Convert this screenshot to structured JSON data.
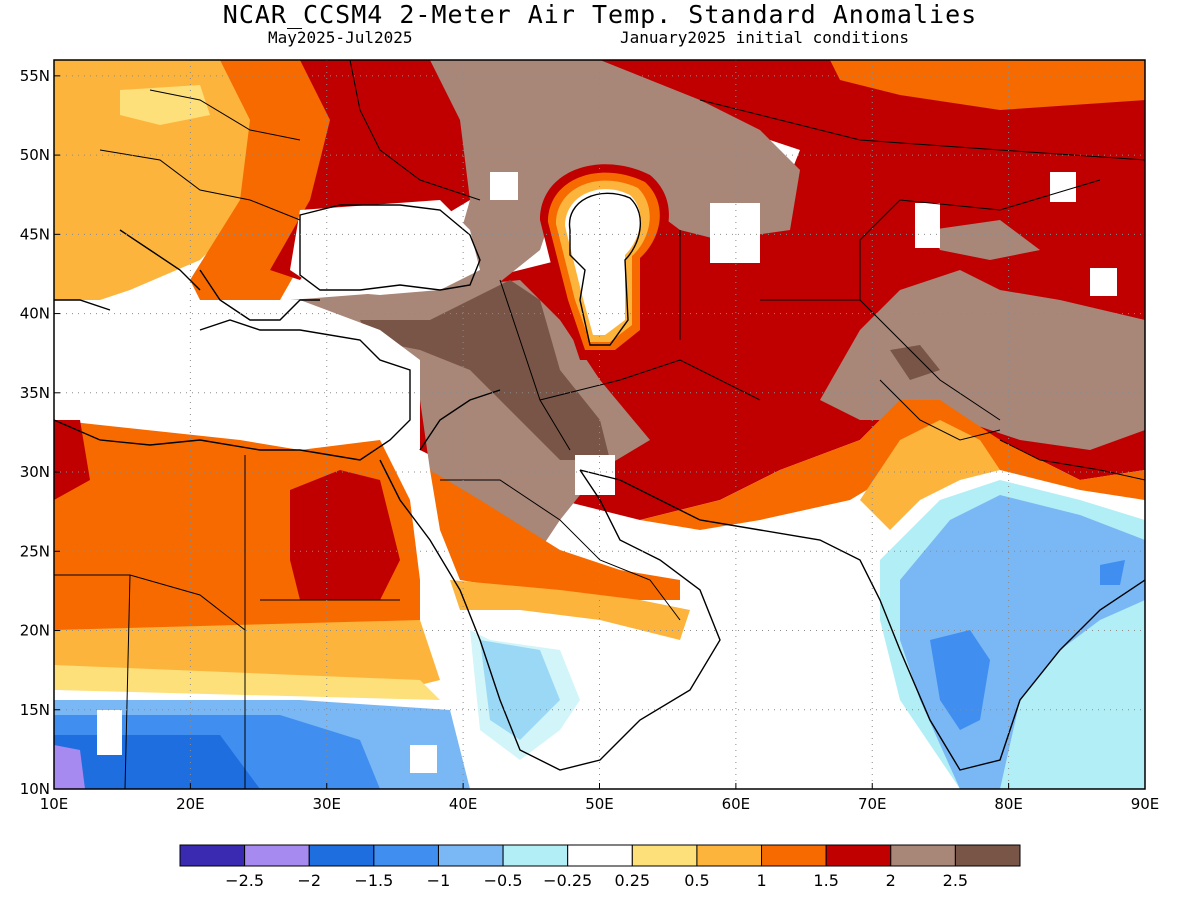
{
  "title": "NCAR_CCSM4 2-Meter Air Temp. Standard Anomalies",
  "subtitle_left": "May2025-Jul2025",
  "subtitle_right": "January2025 initial conditions",
  "axes": {
    "lon_ticks": [
      "10E",
      "20E",
      "30E",
      "40E",
      "50E",
      "60E",
      "70E",
      "80E",
      "90E"
    ],
    "lat_ticks": [
      "55N",
      "50N",
      "45N",
      "40N",
      "35N",
      "30N",
      "25N",
      "20N",
      "15N",
      "10N"
    ],
    "lon_range": [
      10,
      90
    ],
    "lat_range": [
      10,
      56
    ],
    "grid": "dotted"
  },
  "colorbar": {
    "colors": [
      "#3a2ab2",
      "#a78af0",
      "#1f6ee0",
      "#3f8ef0",
      "#79b7f5",
      "#b2eef5",
      "#ffffff",
      "#fde07a",
      "#fdb43c",
      "#f76a00",
      "#c00000",
      "#a88678",
      "#785546"
    ],
    "labels": [
      "-2.5",
      "-2",
      "-1.5",
      "-1",
      "-0.5",
      "-0.25",
      "0.25",
      "0.5",
      "1",
      "1.5",
      "2",
      "2.5"
    ]
  },
  "icons": [
    "coastline-outline",
    "country-borders"
  ]
}
